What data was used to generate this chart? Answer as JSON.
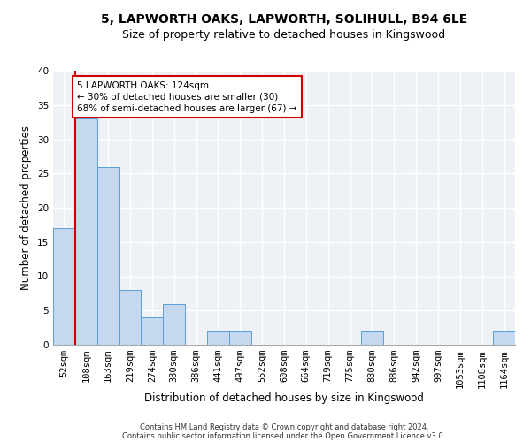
{
  "title1": "5, LAPWORTH OAKS, LAPWORTH, SOLIHULL, B94 6LE",
  "title2": "Size of property relative to detached houses in Kingswood",
  "xlabel": "Distribution of detached houses by size in Kingswood",
  "ylabel": "Number of detached properties",
  "bin_labels": [
    "52sqm",
    "108sqm",
    "163sqm",
    "219sqm",
    "274sqm",
    "330sqm",
    "386sqm",
    "441sqm",
    "497sqm",
    "552sqm",
    "608sqm",
    "664sqm",
    "719sqm",
    "775sqm",
    "830sqm",
    "886sqm",
    "942sqm",
    "997sqm",
    "1053sqm",
    "1108sqm",
    "1164sqm"
  ],
  "bar_heights": [
    17,
    33,
    26,
    8,
    4,
    6,
    0,
    2,
    2,
    0,
    0,
    0,
    0,
    0,
    2,
    0,
    0,
    0,
    0,
    0,
    2
  ],
  "bar_color": "#c5d8ef",
  "bar_edge_color": "#5a9fd4",
  "red_line_x": 0.5,
  "annotation_text": "5 LAPWORTH OAKS: 124sqm\n← 30% of detached houses are smaller (30)\n68% of semi-detached houses are larger (67) →",
  "annotation_box_color": "#ffffff",
  "annotation_box_edge_color": "#cc0000",
  "footer1": "Contains HM Land Registry data © Crown copyright and database right 2024.",
  "footer2": "Contains public sector information licensed under the Open Government Licence v3.0.",
  "ylim": [
    0,
    40
  ],
  "yticks": [
    0,
    5,
    10,
    15,
    20,
    25,
    30,
    35,
    40
  ],
  "background_color": "#eef2f7",
  "grid_color": "#ffffff",
  "title1_fontsize": 10,
  "title2_fontsize": 9,
  "xlabel_fontsize": 8.5,
  "ylabel_fontsize": 8.5,
  "tick_fontsize": 7.5,
  "annot_fontsize": 7.5,
  "footer_fontsize": 6
}
